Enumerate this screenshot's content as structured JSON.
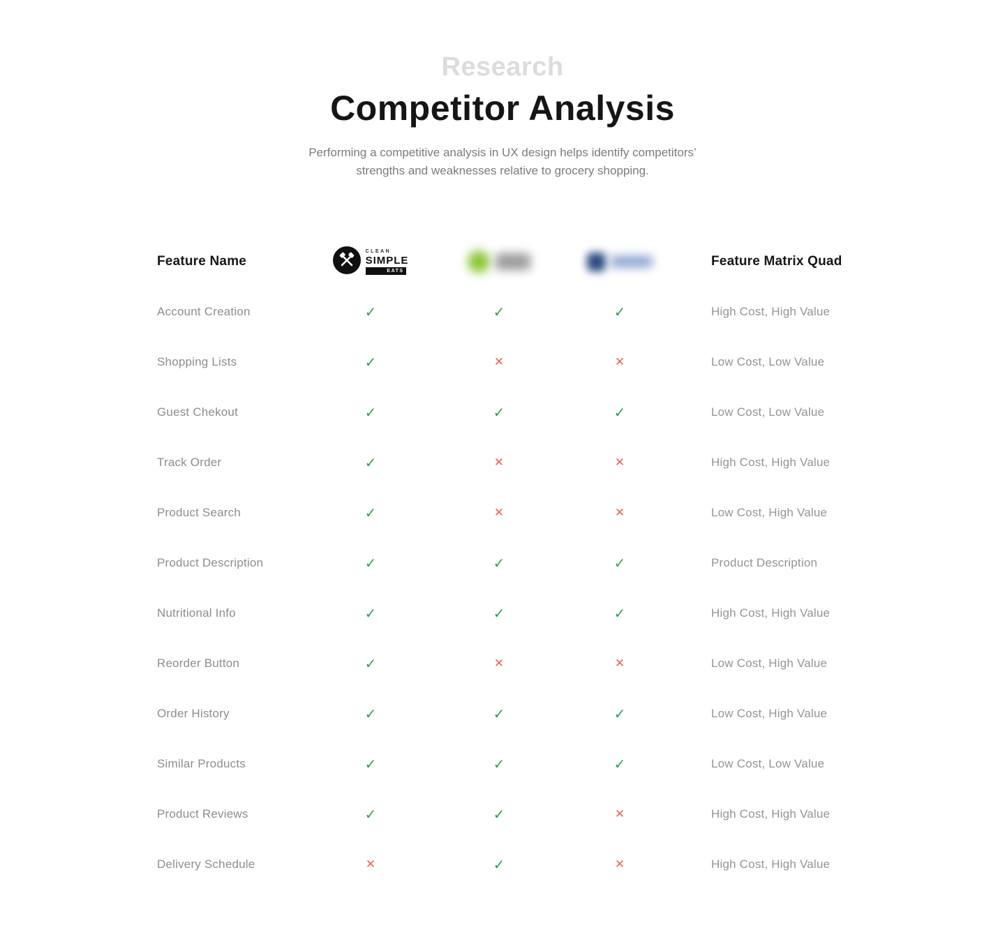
{
  "header": {
    "eyebrow": "Research",
    "title": "Competitor Analysis",
    "subtitle_line1": "Performing a competitive analysis in UX design helps identify competitors’",
    "subtitle_line2": "strengths and weaknesses relative to grocery shopping."
  },
  "table": {
    "feature_col_header": "Feature Name",
    "quad_col_header": "Feature Matrix Quad",
    "competitors": [
      {
        "type": "clean-simple-eats-logo",
        "clean": "CLEAN",
        "simple": "SIMPLE",
        "eats": "EATS"
      },
      {
        "type": "blurred-green-logo"
      },
      {
        "type": "blurred-blue-logo"
      }
    ],
    "glyphs": {
      "check": "✓",
      "cross": "✕"
    },
    "colors": {
      "check": "#2f9e52",
      "cross": "#ed6158",
      "green_logo": "#8cc73a",
      "blue_logo": "#2a4a80"
    },
    "rows": [
      {
        "feature": "Account Creation",
        "marks": [
          "check",
          "check",
          "check"
        ],
        "quad": "High Cost, High Value"
      },
      {
        "feature": "Shopping Lists",
        "marks": [
          "check",
          "cross",
          "cross"
        ],
        "quad": "Low Cost, Low Value"
      },
      {
        "feature": "Guest Chekout",
        "marks": [
          "check",
          "check",
          "check"
        ],
        "quad": "Low Cost, Low Value"
      },
      {
        "feature": "Track Order",
        "marks": [
          "check",
          "cross",
          "cross"
        ],
        "quad": "High Cost, High Value"
      },
      {
        "feature": "Product Search",
        "marks": [
          "check",
          "cross",
          "cross"
        ],
        "quad": "Low Cost, High Value"
      },
      {
        "feature": "Product Description",
        "marks": [
          "check",
          "check",
          "check"
        ],
        "quad": "Product Description"
      },
      {
        "feature": "Nutritional Info",
        "marks": [
          "check",
          "check",
          "check"
        ],
        "quad": "High Cost, High Value"
      },
      {
        "feature": "Reorder Button",
        "marks": [
          "check",
          "cross",
          "cross"
        ],
        "quad": "Low Cost, High Value"
      },
      {
        "feature": "Order History",
        "marks": [
          "check",
          "check",
          "check"
        ],
        "quad": "Low Cost, High Value"
      },
      {
        "feature": "Similar Products",
        "marks": [
          "check",
          "check",
          "check"
        ],
        "quad": "Low Cost, Low Value"
      },
      {
        "feature": "Product Reviews",
        "marks": [
          "check",
          "check",
          "cross"
        ],
        "quad": "High Cost, High Value"
      },
      {
        "feature": "Delivery Schedule",
        "marks": [
          "cross",
          "check",
          "cross"
        ],
        "quad": "High Cost, High Value"
      }
    ]
  }
}
